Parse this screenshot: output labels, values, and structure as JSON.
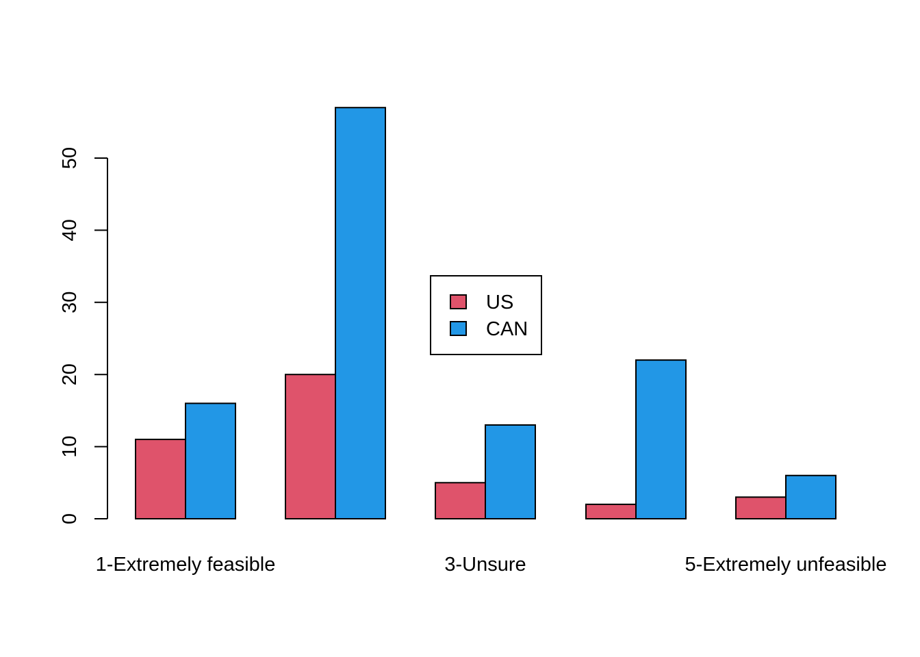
{
  "chart_data": {
    "type": "bar",
    "categories": [
      "1-Extremely feasible",
      "",
      "3-Unsure",
      "",
      "5-Extremely unfeasible"
    ],
    "series": [
      {
        "name": "US",
        "values": [
          11,
          20,
          5,
          2,
          3
        ],
        "color": "#DF536B"
      },
      {
        "name": "CAN",
        "values": [
          16,
          57,
          13,
          22,
          6
        ],
        "color": "#2297E6"
      }
    ],
    "yticks": [
      0,
      10,
      20,
      30,
      40,
      50
    ],
    "ylim": [
      0,
      57
    ],
    "title": "",
    "xlabel": "",
    "ylabel": "",
    "grid": false,
    "legend_position": "center"
  }
}
